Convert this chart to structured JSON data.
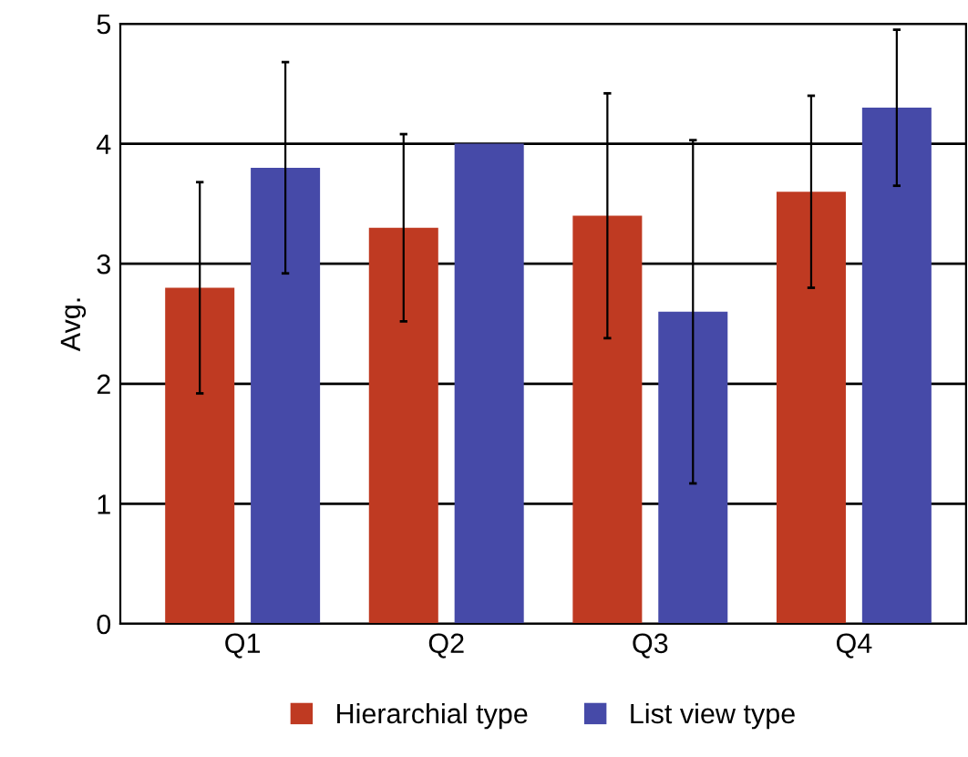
{
  "chart_data": {
    "type": "bar",
    "ylabel": "Avg.",
    "categories": [
      "Q1",
      "Q2",
      "Q3",
      "Q4"
    ],
    "series": [
      {
        "name": "Hierarchial type",
        "color": "#bf3a22",
        "values": [
          2.8,
          3.3,
          3.4,
          3.6
        ],
        "errors": [
          0.88,
          0.78,
          1.02,
          0.8
        ]
      },
      {
        "name": "List view type",
        "color": "#464aa8",
        "values": [
          3.8,
          4.0,
          2.6,
          4.3
        ],
        "errors": [
          0.88,
          null,
          1.43,
          0.65
        ]
      }
    ],
    "ylim": [
      0,
      5
    ],
    "yticks": [
      0,
      1,
      2,
      3,
      4,
      5
    ],
    "grid": "y",
    "legend": "bottom"
  }
}
